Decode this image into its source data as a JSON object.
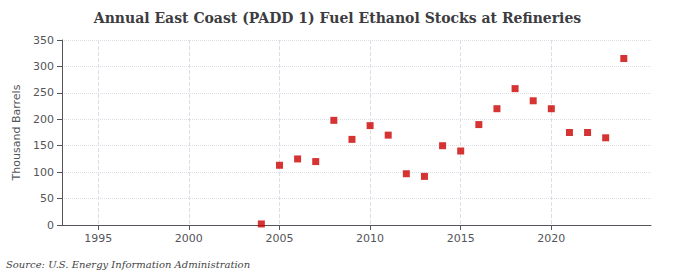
{
  "chart_data": {
    "type": "scatter",
    "title": "Annual East Coast (PADD 1) Fuel Ethanol Stocks at Refineries",
    "ylabel": "Thousand Barrels",
    "annotation": "Source: U.S. Energy Information Administration",
    "x": [
      2004,
      2005,
      2006,
      2007,
      2008,
      2009,
      2010,
      2011,
      2012,
      2013,
      2014,
      2015,
      2016,
      2017,
      2018,
      2019,
      2020,
      2021,
      2022,
      2023,
      2024
    ],
    "values": [
      2,
      113,
      125,
      120,
      198,
      162,
      188,
      170,
      97,
      92,
      150,
      140,
      190,
      220,
      258,
      235,
      220,
      175,
      175,
      165,
      315
    ],
    "color": "#cc0000",
    "marker": "square",
    "xlim": [
      1993,
      2025.5
    ],
    "ylim": [
      0,
      350
    ],
    "xticks": [
      1995,
      2000,
      2005,
      2010,
      2015,
      2020
    ],
    "yticks": [
      0,
      50,
      100,
      150,
      200,
      250,
      300,
      350
    ],
    "grid": true
  }
}
